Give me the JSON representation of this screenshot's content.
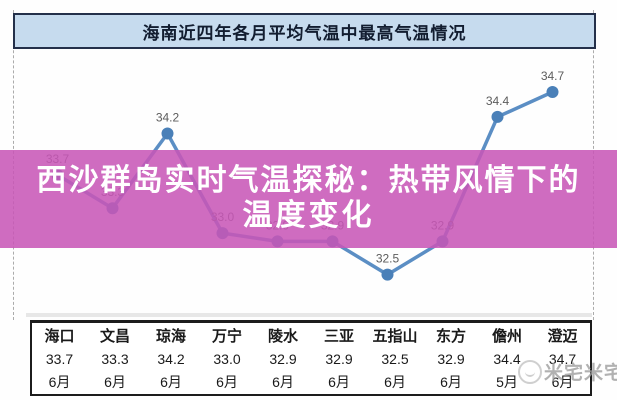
{
  "page": {
    "title_banner": "海南近四年各月平均气温中最高气温情况"
  },
  "overlay": {
    "line1": "西沙群岛实时气温探秘：热带风情下的",
    "line2": "温度变化",
    "bg_color": "#cf64bd",
    "text_color": "#ffffff"
  },
  "watermark": {
    "text": "米宅米宅"
  },
  "chart_data": {
    "type": "line",
    "title": "海南近四年各月平均气温中最高气温情况",
    "categories": [
      "海口",
      "文昌",
      "琼海",
      "万宁",
      "陵水",
      "三亚",
      "五指山",
      "东方",
      "儋州",
      "澄迈"
    ],
    "values": [
      33.7,
      33.3,
      34.2,
      33.0,
      32.9,
      32.9,
      32.5,
      32.9,
      34.4,
      34.7
    ],
    "months": [
      "6月",
      "6月",
      "6月",
      "6月",
      "6月",
      "6月",
      "6月",
      "6月",
      "5月",
      "6月"
    ],
    "xlabel": "",
    "ylabel": "",
    "ylim": [
      32.0,
      35.2
    ],
    "grid": false,
    "legend": "none",
    "data_labels": true,
    "series_color": "#5b8ec4",
    "marker_color": "#4a80b8",
    "label_color": "#5c5c5c"
  },
  "table": {
    "row_names": [
      "city",
      "max_temp",
      "month"
    ]
  }
}
